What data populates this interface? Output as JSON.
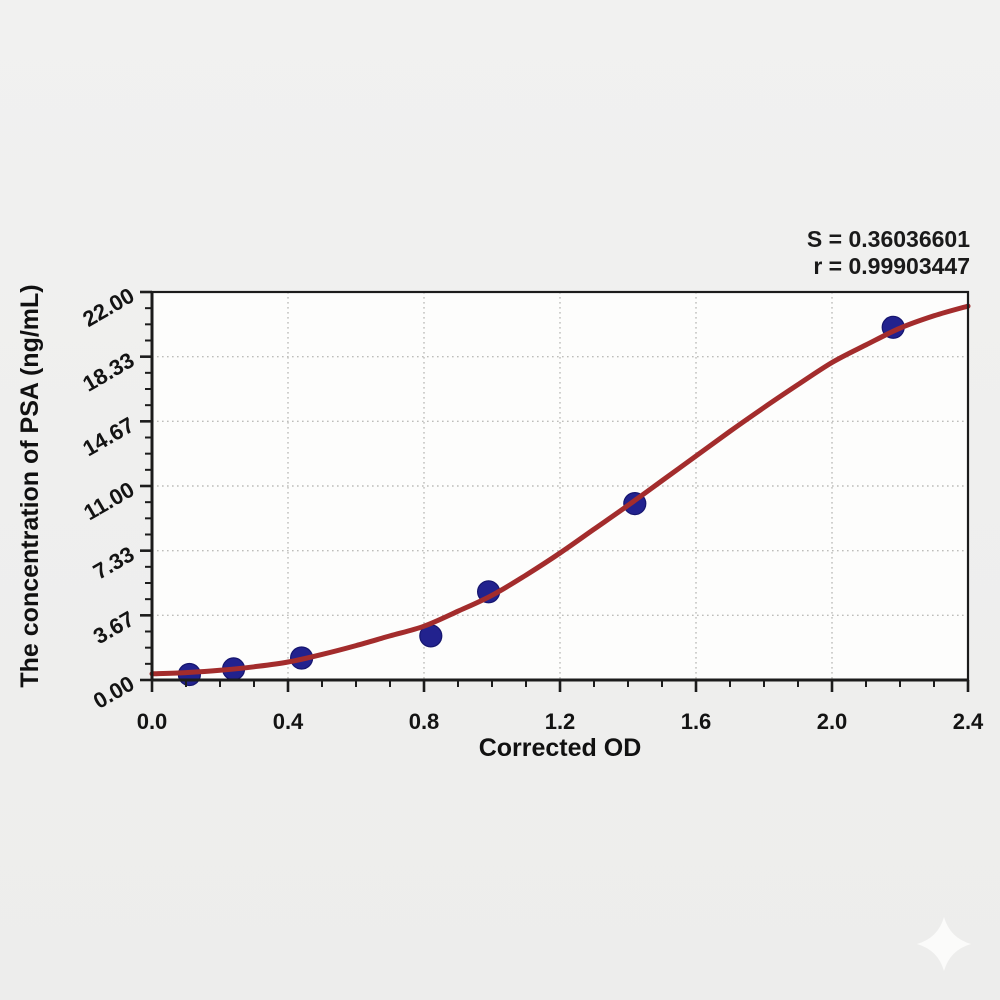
{
  "annotation": {
    "s_line": "S = 0.36036601",
    "r_line": "r = 0.99903447"
  },
  "chart_data": {
    "type": "scatter",
    "title": "",
    "xlabel": "Corrected OD",
    "ylabel": "The concentration of PSA (ng/mL)",
    "xlim": [
      0,
      2.4
    ],
    "ylim": [
      0,
      22
    ],
    "grid": "dotted-at-major-ticks",
    "legend_position": "none",
    "x_major_values": [
      0,
      0.4,
      0.8,
      1.2,
      1.6,
      2.0,
      2.4
    ],
    "x_tick_labels": [
      "0.0",
      "0.4",
      "0.8",
      "1.2",
      "1.6",
      "2.0",
      "2.4"
    ],
    "x_minor_step": 0.1,
    "y_major_values": [
      0,
      3.6667,
      7.3333,
      11,
      14.6667,
      18.3333,
      22
    ],
    "y_tick_labels": [
      "0.00",
      "3.67",
      "7.33",
      "11.00",
      "14.67",
      "18.33",
      "22.00"
    ],
    "y_minor_divisions": 4,
    "stats": {
      "S": "0.36036601",
      "r": "0.99903447"
    },
    "series": [
      {
        "name": "standard-points",
        "type": "scatter",
        "color": "#22228e",
        "edge_color": "#15156e",
        "marker_radius": 11,
        "points": [
          [
            0.11,
            0.31
          ],
          [
            0.24,
            0.63
          ],
          [
            0.44,
            1.25
          ],
          [
            0.82,
            2.5
          ],
          [
            0.99,
            5.0
          ],
          [
            1.42,
            10.0
          ],
          [
            2.18,
            20.0
          ]
        ]
      },
      {
        "name": "fit-curve",
        "type": "line",
        "color": "#a32c2c",
        "stroke_width": 5,
        "points": [
          [
            0.0,
            0.35
          ],
          [
            0.1,
            0.42
          ],
          [
            0.2,
            0.55
          ],
          [
            0.3,
            0.75
          ],
          [
            0.4,
            1.02
          ],
          [
            0.5,
            1.45
          ],
          [
            0.6,
            1.95
          ],
          [
            0.7,
            2.5
          ],
          [
            0.8,
            3.05
          ],
          [
            0.9,
            3.9
          ],
          [
            1.0,
            4.8
          ],
          [
            1.1,
            5.95
          ],
          [
            1.2,
            7.2
          ],
          [
            1.3,
            8.55
          ],
          [
            1.4,
            9.9
          ],
          [
            1.5,
            11.3
          ],
          [
            1.6,
            12.7
          ],
          [
            1.7,
            14.1
          ],
          [
            1.8,
            15.45
          ],
          [
            1.9,
            16.75
          ],
          [
            2.0,
            18.0
          ],
          [
            2.1,
            19.0
          ],
          [
            2.2,
            19.95
          ],
          [
            2.3,
            20.65
          ],
          [
            2.4,
            21.2
          ]
        ]
      }
    ],
    "colors": {
      "frame": "#1c1c1c",
      "grid": "#bdbdba",
      "plot_background": "#fdfdfc",
      "figure_background": "#efefee"
    }
  },
  "watermark": {
    "icon": "sparkle-icon",
    "color": "#fbfbfa"
  }
}
